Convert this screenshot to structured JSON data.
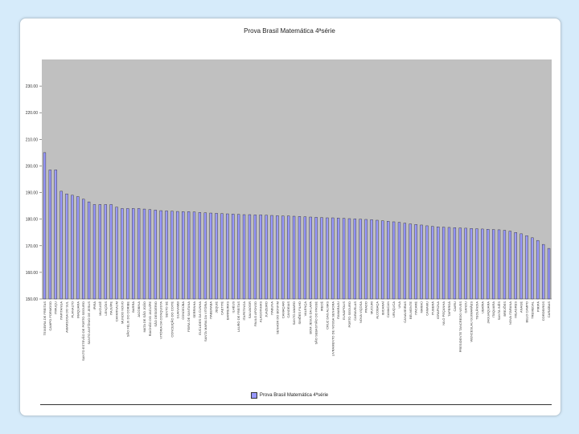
{
  "chart_data": {
    "type": "bar",
    "title": "Prova Brasil Matemática 4ªsérie",
    "xlabel": "",
    "ylabel": "",
    "ylim": [
      150,
      240
    ],
    "yticks": [
      150,
      160,
      170,
      180,
      190,
      200,
      210,
      220,
      230
    ],
    "grid": false,
    "legend_position": "bottom",
    "plot_background": "#c0c0c0",
    "bar_color": "#9999ff",
    "series": [
      {
        "name": "Prova Brasil Matemática 4ªsérie",
        "values": [
          205.0,
          198.5,
          198.5,
          190.5,
          189.5,
          189.0,
          188.5,
          187.5,
          186.5,
          185.5,
          185.5,
          185.5,
          185.5,
          184.5,
          184.0,
          184.0,
          184.0,
          184.0,
          183.8,
          183.6,
          183.4,
          183.2,
          183.1,
          183.0,
          182.9,
          182.8,
          182.8,
          182.7,
          182.5,
          182.4,
          182.3,
          182.2,
          182.1,
          182.0,
          181.9,
          181.8,
          181.7,
          181.7,
          181.6,
          181.6,
          181.5,
          181.4,
          181.3,
          181.2,
          181.2,
          181.1,
          181.0,
          180.9,
          180.8,
          180.7,
          180.6,
          180.5,
          180.5,
          180.4,
          180.3,
          180.2,
          180.1,
          180.0,
          179.9,
          179.8,
          179.6,
          179.4,
          179.2,
          179.0,
          178.8,
          178.5,
          178.2,
          178.0,
          177.8,
          177.5,
          177.3,
          177.1,
          177.0,
          176.9,
          176.8,
          176.7,
          176.6,
          176.5,
          176.4,
          176.3,
          176.2,
          176.1,
          176.0,
          175.8,
          175.5,
          175.0,
          174.5,
          173.8,
          173.0,
          172.0,
          170.5,
          169.0
        ],
        "labels": [
          "TEIXEIRA DE FREITAS",
          "CAMPO FORMOSO",
          "ITIRUÇU",
          "ITAPITANGA",
          "AMARGOSA DO SUL",
          "PLANALTO",
          "IRAQUARA",
          "SANTO ESTEVÃO DE PORTO SEGURO",
          "SANTO ANTÔNIO DE JESUS",
          "IPIRÁ",
          "MUCUGÊ",
          "LENÇÓIS",
          "ITAJUÍPE",
          "CAFARNAUM",
          "MUNDO NOVO",
          "SÃO FÉLIX DO CORIBE",
          "BARRA",
          "JACOBINA",
          "MATA DE SÃO JOÃO",
          "RIACHÃO DO JACUÍPE",
          "SÃO DESIDÉRIO",
          "VITÓRIA DA CONQUISTA",
          "SENTO SÉ",
          "CONCEIÇÃO DO COITÉ",
          "GUANAMBI",
          "CONDEÚBA",
          "FEIRA DE SANTANA",
          "SERRINHA",
          "EUCLIDES DA CUNHA",
          "SANTA MARIA DA VITÓRIA",
          "ITABERABA",
          "JEQUIÉ",
          "CAETITÉ",
          "BARREIRAS",
          "ILHÉUS",
          "LAURO DE FREITAS",
          "ITAPETINGA",
          "SALVADOR",
          "PAULO AFONSO",
          "ALAGOINHAS",
          "JUAZEIRO",
          "ITABUNA",
          "SENHOR DO BONFIM",
          "CAMAÇARI",
          "CANDEIAS",
          "SANTO AMARO",
          "SIMÕES FILHO",
          "VALENÇA",
          "BOM JESUS DA LAPA",
          "SÃO SEBASTIÃO DO PASSÉ",
          "IRECÊ",
          "CRUZ DAS ALMAS",
          "LIVRAMENTO DE NOSSA SENHORA",
          "ITAMARAJU",
          "EUNÁPOLIS",
          "PORTO SEGURO",
          "CARAVELAS",
          "NOVA VIÇOSA",
          "PRADO",
          "MUCURI",
          "ALCOBAÇA",
          "IBICARAÍ",
          "CAMACAN",
          "URUÇUCA",
          "UNA",
          "CANAVIEIRAS",
          "BELMONTE",
          "ITACARÉ",
          "MARAÚ",
          "CAMAMU",
          "ITUBERÁ",
          "IGRAPIÚNA",
          "NILO PEÇANHA",
          "TAPEROÁ",
          "CAIRU",
          "PRESIDENTE TANCREDO NEVES",
          "GANDU",
          "WENCESLAU GUIMARÃES",
          "TEOLÂNDIA",
          "UBAÍRA",
          "JAGUAQUARA",
          "ITAQUARA",
          "SANTA INÊS",
          "BREJÕES",
          "NOVA ITARANA",
          "MILAGRES",
          "ANAGÉ",
          "BELO CAMPO",
          "TREMEDAL",
          "PIRIPÁ",
          "CORDEIROS",
          "CARAÍBAS"
        ]
      }
    ]
  }
}
